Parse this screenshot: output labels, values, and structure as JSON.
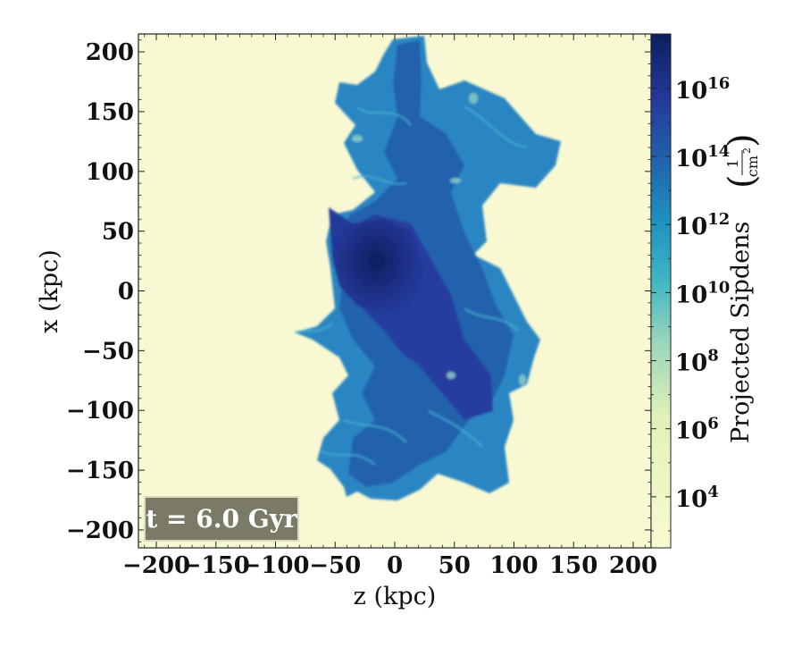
{
  "chart_data": {
    "type": "heatmap",
    "title": "",
    "xlabel": "z  (kpc)",
    "ylabel": "x  (kpc)",
    "xlim": [
      -215,
      215
    ],
    "ylim": [
      -215,
      215
    ],
    "x_ticks": [
      -200,
      -150,
      -100,
      -50,
      0,
      50,
      100,
      150,
      200
    ],
    "y_ticks": [
      -200,
      -150,
      -100,
      -50,
      0,
      50,
      100,
      150,
      200
    ],
    "x_tick_labels": [
      "−200",
      "−150",
      "−100",
      "−50",
      "0",
      "50",
      "100",
      "150",
      "200"
    ],
    "y_tick_labels": [
      "−200",
      "−150",
      "−100",
      "−50",
      "0",
      "50",
      "100",
      "150",
      "200"
    ],
    "annotation": "t = 6.0 Gyr",
    "colorbar": {
      "label": "Projected Sipdens",
      "unit_numerator": "1",
      "unit_denominator": "cm",
      "unit_exponent": "2",
      "scale": "log",
      "range_exponent": [
        2.5,
        17.6
      ],
      "ticks": [
        {
          "base": "10",
          "exp": "4",
          "exponent": 4
        },
        {
          "base": "10",
          "exp": "6",
          "exponent": 6
        },
        {
          "base": "10",
          "exp": "8",
          "exponent": 8
        },
        {
          "base": "10",
          "exp": "10",
          "exponent": 10
        },
        {
          "base": "10",
          "exp": "12",
          "exponent": 12
        },
        {
          "base": "10",
          "exp": "14",
          "exponent": 14
        },
        {
          "base": "10",
          "exp": "16",
          "exponent": 16
        }
      ],
      "colormap": "YlGnBu",
      "colors": [
        "#ffffd9",
        "#edf8b1",
        "#c7e9b4",
        "#7fcdbb",
        "#41b6c4",
        "#1d91c0",
        "#225ea8",
        "#253494",
        "#081d58"
      ]
    },
    "background_color": "#f8f9d3"
  }
}
